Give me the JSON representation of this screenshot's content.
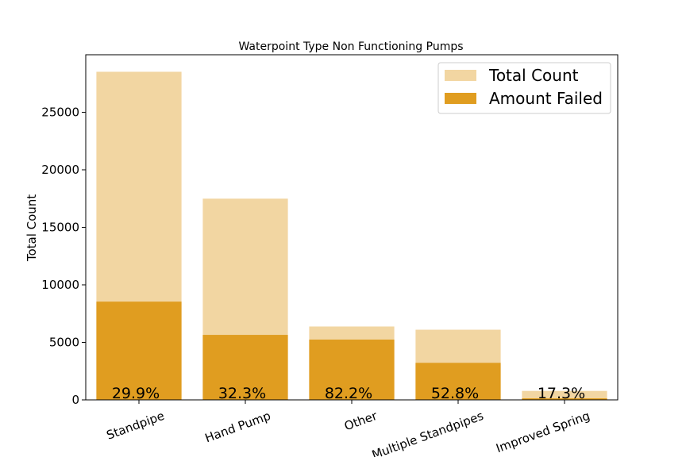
{
  "chart_data": {
    "type": "bar",
    "title": "Waterpoint Type Non Functioning Pumps",
    "xlabel": "",
    "ylabel": "Total Count",
    "categories": [
      "Standpipe",
      "Hand Pump",
      "Other",
      "Multiple Standpipes",
      "Improved Spring"
    ],
    "series": [
      {
        "name": "Total Count",
        "values": [
          28520,
          17490,
          6380,
          6100,
          780
        ],
        "color": "#f2d6a2"
      },
      {
        "name": "Amount Failed",
        "values": [
          8540,
          5650,
          5240,
          3220,
          135
        ],
        "color": "#e09d20"
      }
    ],
    "percent_labels": [
      "29.9%",
      "32.3%",
      "82.2%",
      "52.8%",
      "17.3%"
    ],
    "ylim": [
      0,
      30000
    ],
    "yticks": [
      0,
      5000,
      10000,
      15000,
      20000,
      25000
    ],
    "legend_position": "top-right",
    "grid": false
  }
}
